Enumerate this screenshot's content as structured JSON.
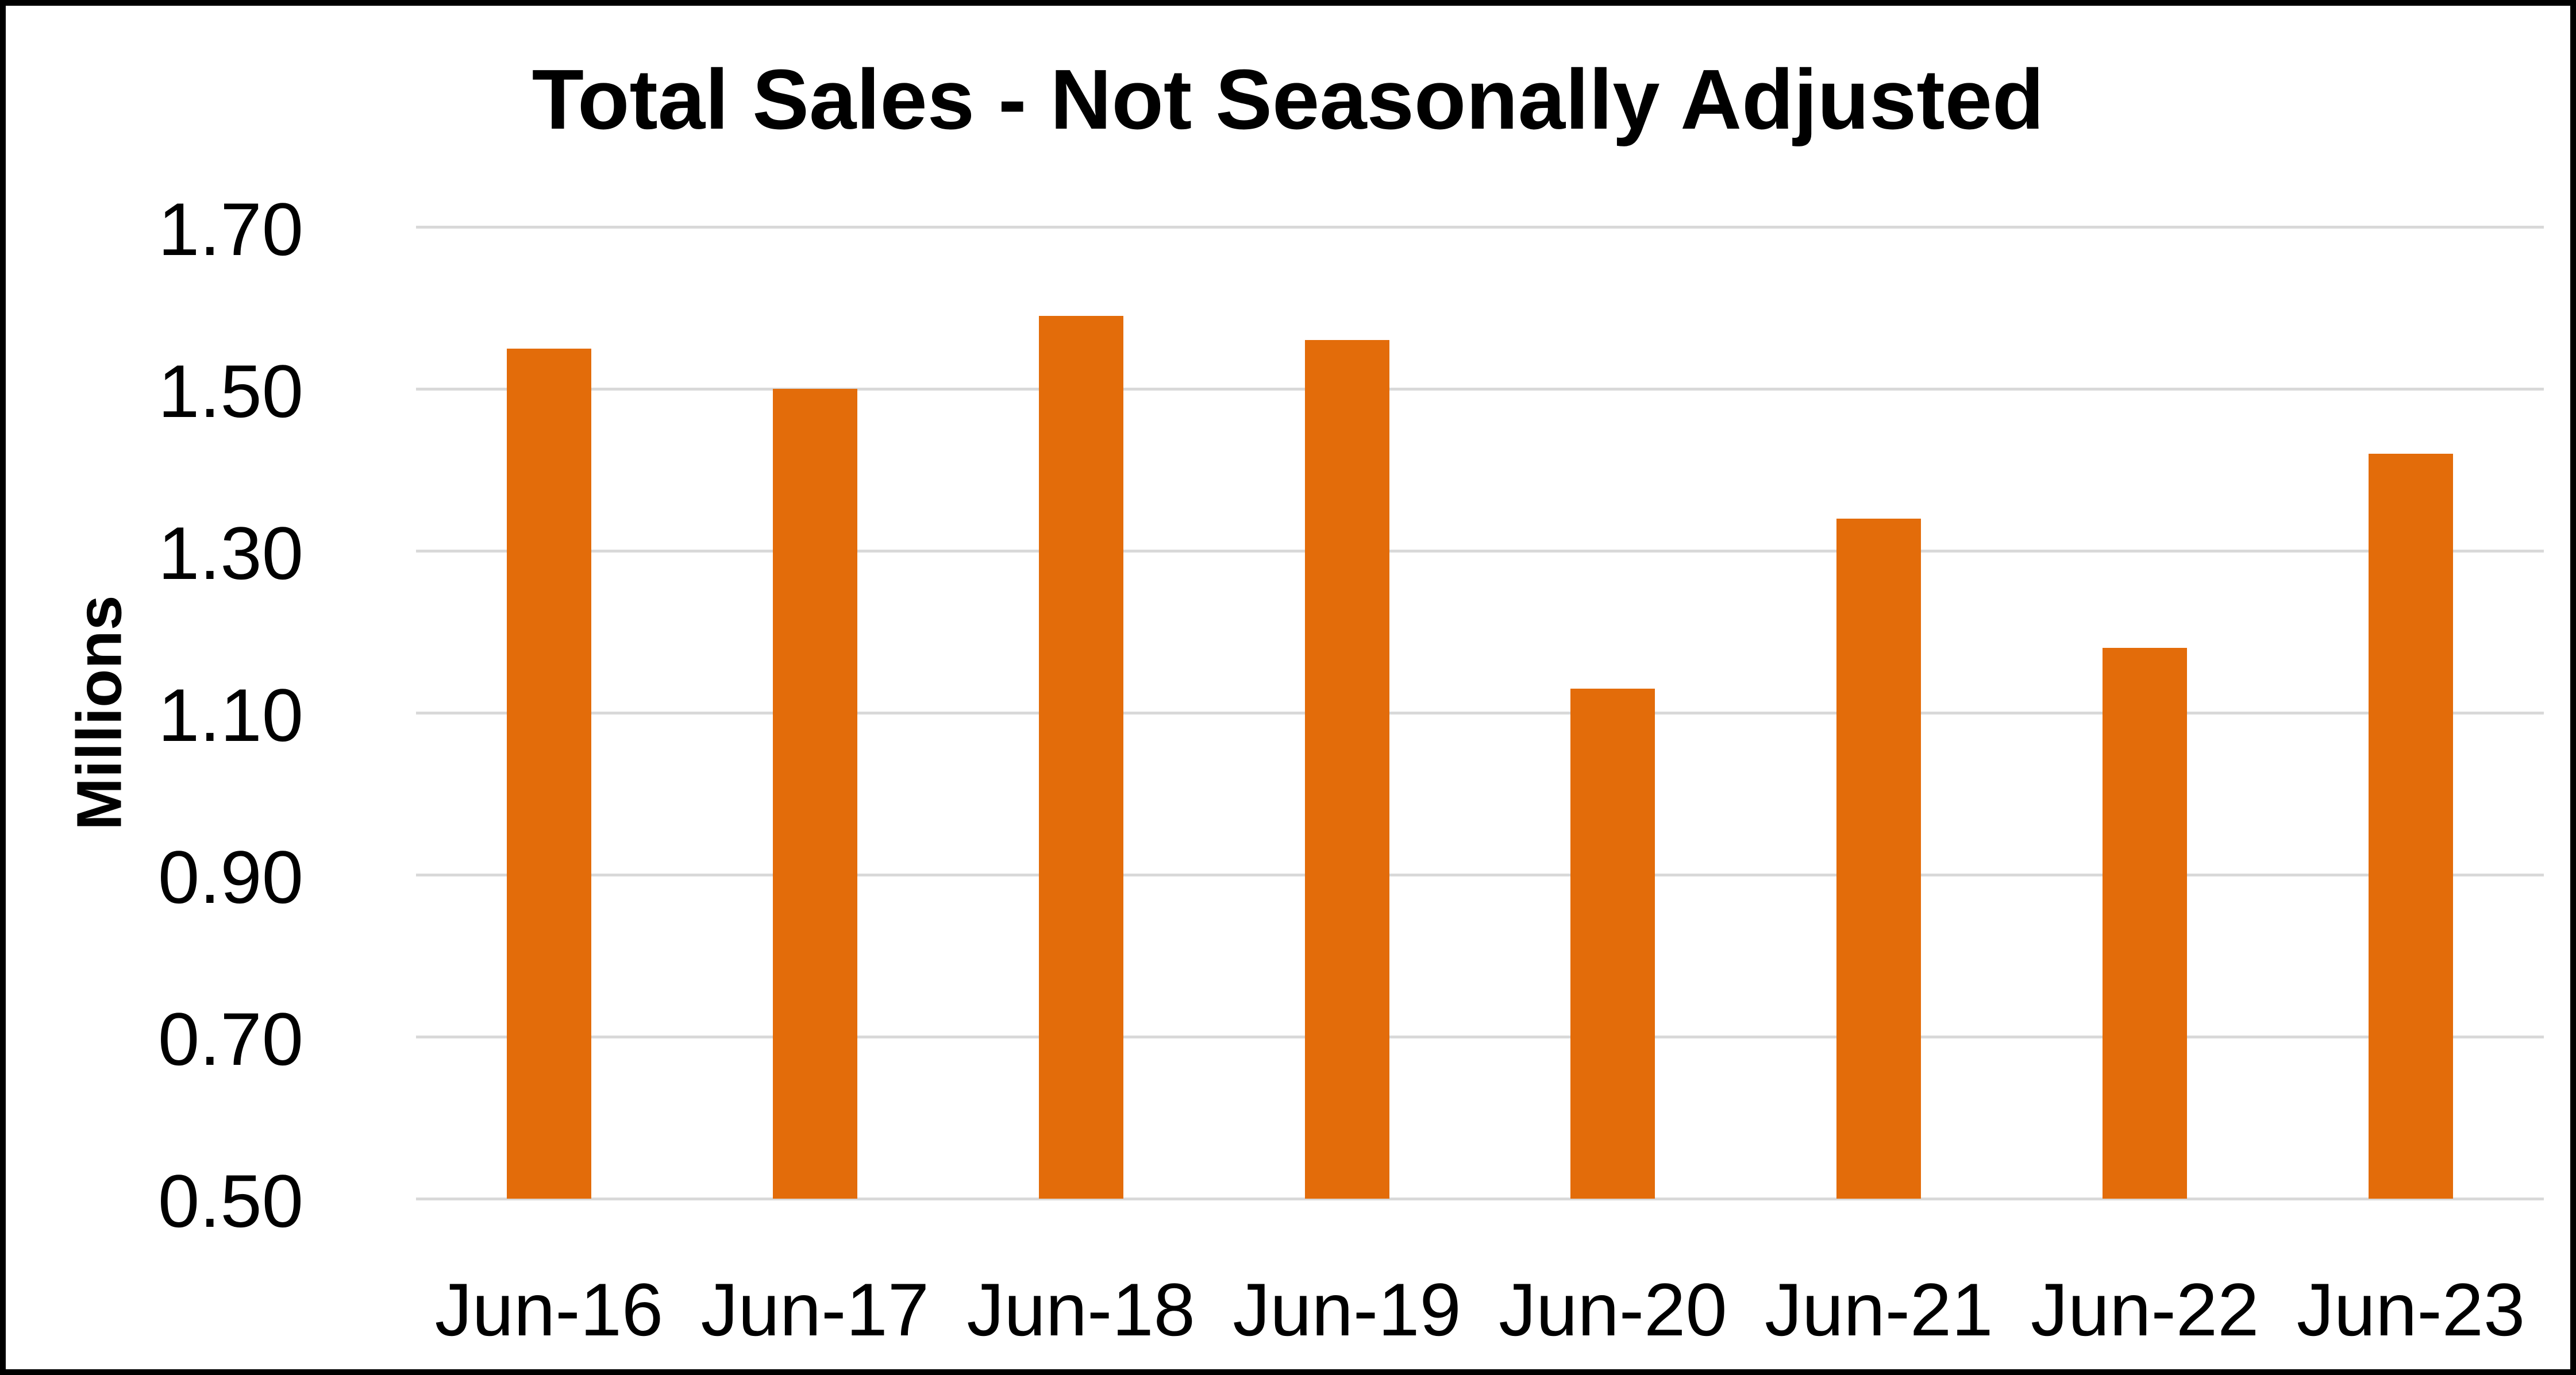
{
  "page": {
    "background": "#FFFFFF",
    "frame_color": "#000000"
  },
  "chart_data": {
    "type": "bar",
    "title": "Total Sales - Not Seasonally Adjusted",
    "ylabel": "Millions",
    "xlabel": "",
    "categories": [
      "Jun-16",
      "Jun-17",
      "Jun-18",
      "Jun-19",
      "Jun-20",
      "Jun-21",
      "Jun-22",
      "Jun-23"
    ],
    "values": [
      1.55,
      1.5,
      1.59,
      1.56,
      1.13,
      1.34,
      1.18,
      1.42
    ],
    "ylim": [
      0.5,
      1.7
    ],
    "ytick_step": 0.2,
    "yticks": [
      1.7,
      1.5,
      1.3,
      1.1,
      0.9,
      0.7,
      0.5
    ],
    "ytick_format": "two-decimals",
    "grid": true,
    "legend": false,
    "bar_color": "#E36C0A",
    "gridline_color": "#D9D9D9",
    "text_color": "#000000"
  }
}
